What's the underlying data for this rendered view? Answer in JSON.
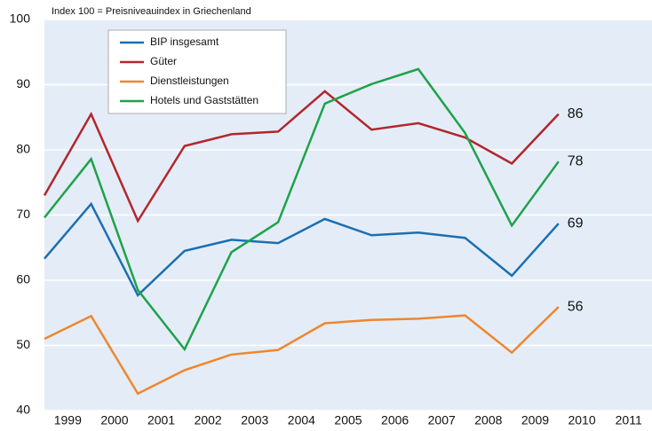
{
  "chart_data": {
    "type": "line",
    "subtitle": "Index 100 = Preisniveauindex in Griechenland",
    "x": [
      1999,
      2000,
      2001,
      2002,
      2003,
      2004,
      2005,
      2006,
      2007,
      2008,
      2009,
      2010
    ],
    "xlim": [
      1999,
      2012
    ],
    "xticks": [
      {
        "value": 1999.5,
        "label": "1999"
      },
      {
        "value": 2000.5,
        "label": "2000"
      },
      {
        "value": 2001.5,
        "label": "2001"
      },
      {
        "value": 2002.5,
        "label": "2002"
      },
      {
        "value": 2003.5,
        "label": "2003"
      },
      {
        "value": 2004.5,
        "label": "2004"
      },
      {
        "value": 2005.5,
        "label": "2005"
      },
      {
        "value": 2006.5,
        "label": "2006"
      },
      {
        "value": 2007.5,
        "label": "2007"
      },
      {
        "value": 2008.5,
        "label": "2008"
      },
      {
        "value": 2009.5,
        "label": "2009"
      },
      {
        "value": 2010.5,
        "label": "2010"
      },
      {
        "value": 2011.5,
        "label": "2011"
      }
    ],
    "ylim": [
      40,
      100
    ],
    "yticks": [
      40,
      50,
      60,
      70,
      80,
      90,
      100
    ],
    "grid": true,
    "legend": "upper left",
    "series": [
      {
        "name": "BIP insgesamt",
        "color": "#1b6fb3",
        "values": [
          63.3,
          71.7,
          57.7,
          64.5,
          66.2,
          65.7,
          69.4,
          66.9,
          67.3,
          66.5,
          60.7,
          68.7
        ],
        "value_labels": [
          null,
          null,
          null,
          null,
          null,
          null,
          null,
          null,
          null,
          null,
          null,
          "69"
        ]
      },
      {
        "name": "Güter",
        "color": "#b3262d",
        "values": [
          73.0,
          85.5,
          69.1,
          80.6,
          82.4,
          82.8,
          89.0,
          83.1,
          84.1,
          81.9,
          77.9,
          85.5
        ],
        "value_labels": [
          null,
          null,
          null,
          null,
          null,
          null,
          null,
          null,
          null,
          null,
          null,
          "86"
        ]
      },
      {
        "name": "Dienstleistungen",
        "color": "#f0862c",
        "values": [
          51.0,
          54.5,
          42.6,
          46.2,
          48.6,
          49.3,
          53.4,
          53.9,
          54.1,
          54.6,
          48.9,
          55.9
        ],
        "value_labels": [
          null,
          null,
          null,
          null,
          null,
          null,
          null,
          null,
          null,
          null,
          null,
          "56"
        ]
      },
      {
        "name": "Hotels und Gaststätten",
        "color": "#1ea24a",
        "values": [
          69.6,
          78.6,
          58.5,
          49.4,
          64.3,
          68.9,
          87.1,
          90.1,
          92.4,
          82.6,
          68.4,
          78.2
        ],
        "value_labels": [
          null,
          null,
          null,
          null,
          null,
          null,
          null,
          null,
          null,
          null,
          null,
          "78"
        ]
      }
    ]
  }
}
